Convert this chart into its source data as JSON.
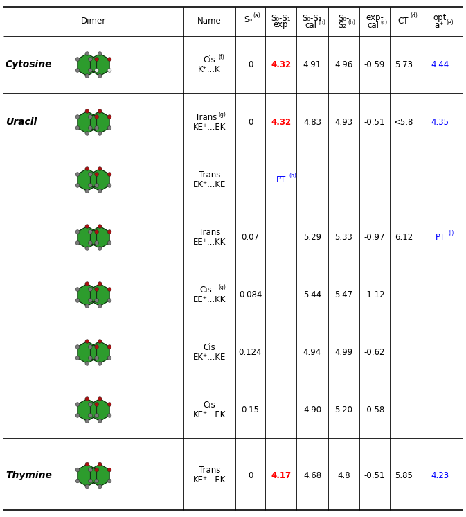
{
  "rows": [
    {
      "group": "Cytosine",
      "name_line1": "Cis",
      "name_line2": "K⁺...K",
      "name_sup": "(f)",
      "name_sup_on_line1": false,
      "S0": "0",
      "S0S1_exp": "4.32",
      "S0S1_exp_color": "red",
      "S0S1_exp_sup": "",
      "S0S1_cal": "4.91",
      "S0S2": "4.96",
      "exp_cal": "-0.59",
      "CT": "5.73",
      "opt": "4.44",
      "opt_color": "blue",
      "opt_sup": ""
    },
    {
      "group": "Uracil",
      "name_line1": "Trans",
      "name_line2": "KE⁺...EK",
      "name_sup": "(g)",
      "name_sup_on_line1": true,
      "S0": "0",
      "S0S1_exp": "4.32",
      "S0S1_exp_color": "red",
      "S0S1_exp_sup": "",
      "S0S1_cal": "4.83",
      "S0S2": "4.93",
      "exp_cal": "-0.51",
      "CT": "<5.8",
      "opt": "4.35",
      "opt_color": "blue",
      "opt_sup": ""
    },
    {
      "group": "",
      "name_line1": "Trans",
      "name_line2": "EK⁺...KE",
      "name_sup": "",
      "name_sup_on_line1": false,
      "S0": "",
      "S0S1_exp": "PT",
      "S0S1_exp_color": "blue",
      "S0S1_exp_sup": "(h)",
      "S0S1_cal": "",
      "S0S2": "",
      "exp_cal": "",
      "CT": "",
      "opt": "",
      "opt_color": "black",
      "opt_sup": ""
    },
    {
      "group": "",
      "name_line1": "Trans",
      "name_line2": "EE⁺...KK",
      "name_sup": "",
      "name_sup_on_line1": false,
      "S0": "0.07",
      "S0S1_exp": "",
      "S0S1_exp_color": "black",
      "S0S1_exp_sup": "",
      "S0S1_cal": "5.29",
      "S0S2": "5.33",
      "exp_cal": "-0.97",
      "CT": "6.12",
      "opt": "PT",
      "opt_color": "blue",
      "opt_sup": "(i)"
    },
    {
      "group": "",
      "name_line1": "Cis",
      "name_line2": "EE⁺...KK",
      "name_sup": "(g)",
      "name_sup_on_line1": true,
      "S0": "0.084",
      "S0S1_exp": "",
      "S0S1_exp_color": "black",
      "S0S1_exp_sup": "",
      "S0S1_cal": "5.44",
      "S0S2": "5.47",
      "exp_cal": "-1.12",
      "CT": "",
      "opt": "",
      "opt_color": "black",
      "opt_sup": ""
    },
    {
      "group": "",
      "name_line1": "Cis",
      "name_line2": "EK⁺...KE",
      "name_sup": "",
      "name_sup_on_line1": false,
      "S0": "0.124",
      "S0S1_exp": "",
      "S0S1_exp_color": "black",
      "S0S1_exp_sup": "",
      "S0S1_cal": "4.94",
      "S0S2": "4.99",
      "exp_cal": "-0.62",
      "CT": "",
      "opt": "",
      "opt_color": "black",
      "opt_sup": ""
    },
    {
      "group": "",
      "name_line1": "Cis",
      "name_line2": "KE⁺...EK",
      "name_sup": "",
      "name_sup_on_line1": false,
      "S0": "0.15",
      "S0S1_exp": "",
      "S0S1_exp_color": "black",
      "S0S1_exp_sup": "",
      "S0S1_cal": "4.90",
      "S0S2": "5.20",
      "exp_cal": "-0.58",
      "CT": "",
      "opt": "",
      "opt_color": "black",
      "opt_sup": ""
    },
    {
      "group": "Thymine",
      "name_line1": "Trans",
      "name_line2": "KE⁺...EK",
      "name_sup": "",
      "name_sup_on_line1": false,
      "S0": "0",
      "S0S1_exp": "4.17",
      "S0S1_exp_color": "red",
      "S0S1_exp_sup": "",
      "S0S1_cal": "4.68",
      "S0S2": "4.8",
      "exp_cal": "-0.51",
      "CT": "5.85",
      "opt": "4.23",
      "opt_color": "blue",
      "opt_sup": ""
    }
  ],
  "bg_color": "#ffffff",
  "font_size": 8.5,
  "header_font_size": 8.5
}
